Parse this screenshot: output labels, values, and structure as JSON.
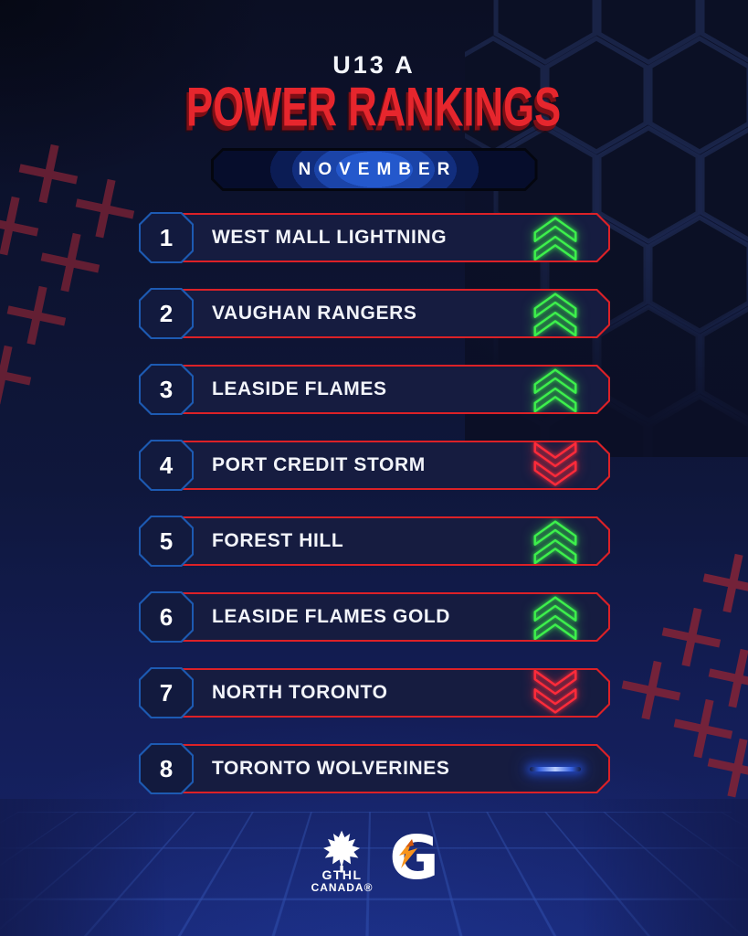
{
  "header": {
    "division": "U13 A",
    "title": "POWER RANKINGS",
    "month": "NOVEMBER"
  },
  "rankings": [
    {
      "rank": "1",
      "team": "WEST MALL LIGHTNING",
      "trend": "up"
    },
    {
      "rank": "2",
      "team": "VAUGHAN RANGERS",
      "trend": "up"
    },
    {
      "rank": "3",
      "team": "LEASIDE FLAMES",
      "trend": "up"
    },
    {
      "rank": "4",
      "team": "PORT CREDIT STORM",
      "trend": "down"
    },
    {
      "rank": "5",
      "team": "FOREST HILL",
      "trend": "up"
    },
    {
      "rank": "6",
      "team": "LEASIDE FLAMES GOLD",
      "trend": "up"
    },
    {
      "rank": "7",
      "team": "NORTH TORONTO",
      "trend": "down"
    },
    {
      "rank": "8",
      "team": "TORONTO WOLVERINES",
      "trend": "same"
    }
  ],
  "footer": {
    "gthl": {
      "line1": "GTHL",
      "line2": "CANADA®"
    },
    "gatorade": {
      "letter": "G"
    }
  },
  "colors": {
    "accent_red": "#dc2127",
    "title_red": "#e6262d",
    "neon_green": "#3df04c",
    "neon_red": "#ff2b3a",
    "neon_blue": "#3560e0",
    "box_border_blue": "#1d5ab2",
    "row_fill": "#161c40",
    "badge_blue": "#2458cc",
    "bolt_orange": "#f7941d"
  }
}
